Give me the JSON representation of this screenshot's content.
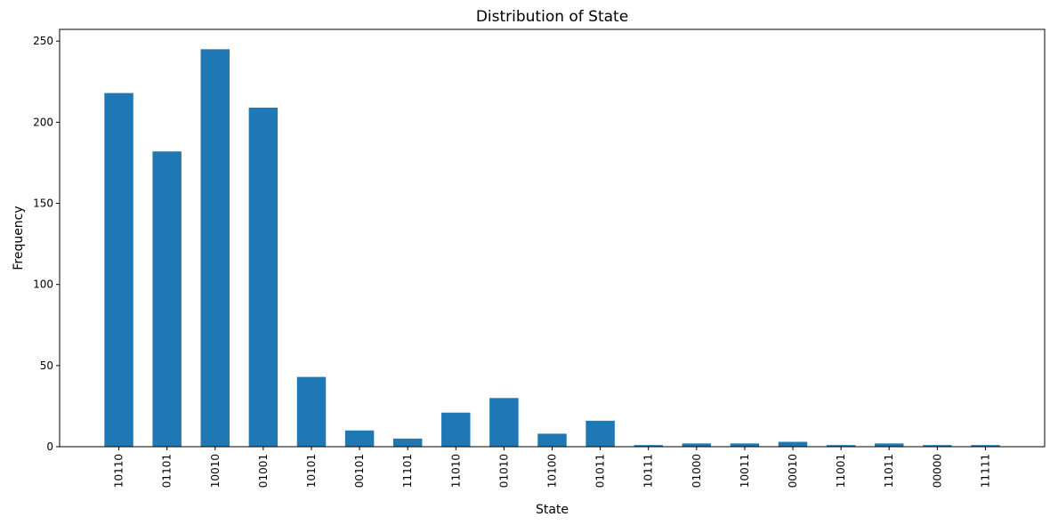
{
  "chart_data": {
    "type": "bar",
    "title": "Distribution of State",
    "xlabel": "State",
    "ylabel": "Frequency",
    "categories": [
      "10110",
      "01101",
      "10010",
      "01001",
      "10101",
      "00101",
      "11101",
      "11010",
      "01010",
      "10100",
      "01011",
      "10111",
      "01000",
      "10011",
      "00010",
      "11001",
      "11011",
      "00000",
      "11111"
    ],
    "values": [
      218,
      182,
      245,
      209,
      43,
      10,
      5,
      21,
      30,
      8,
      16,
      1,
      2,
      2,
      3,
      1,
      2,
      1,
      1
    ],
    "ylim": [
      0,
      257.25
    ],
    "yticks": [
      0,
      50,
      100,
      150,
      200,
      250
    ],
    "bar_color": "#1f77b4",
    "grid": false,
    "legend": "none",
    "x_tick_rotation": "vertical"
  }
}
